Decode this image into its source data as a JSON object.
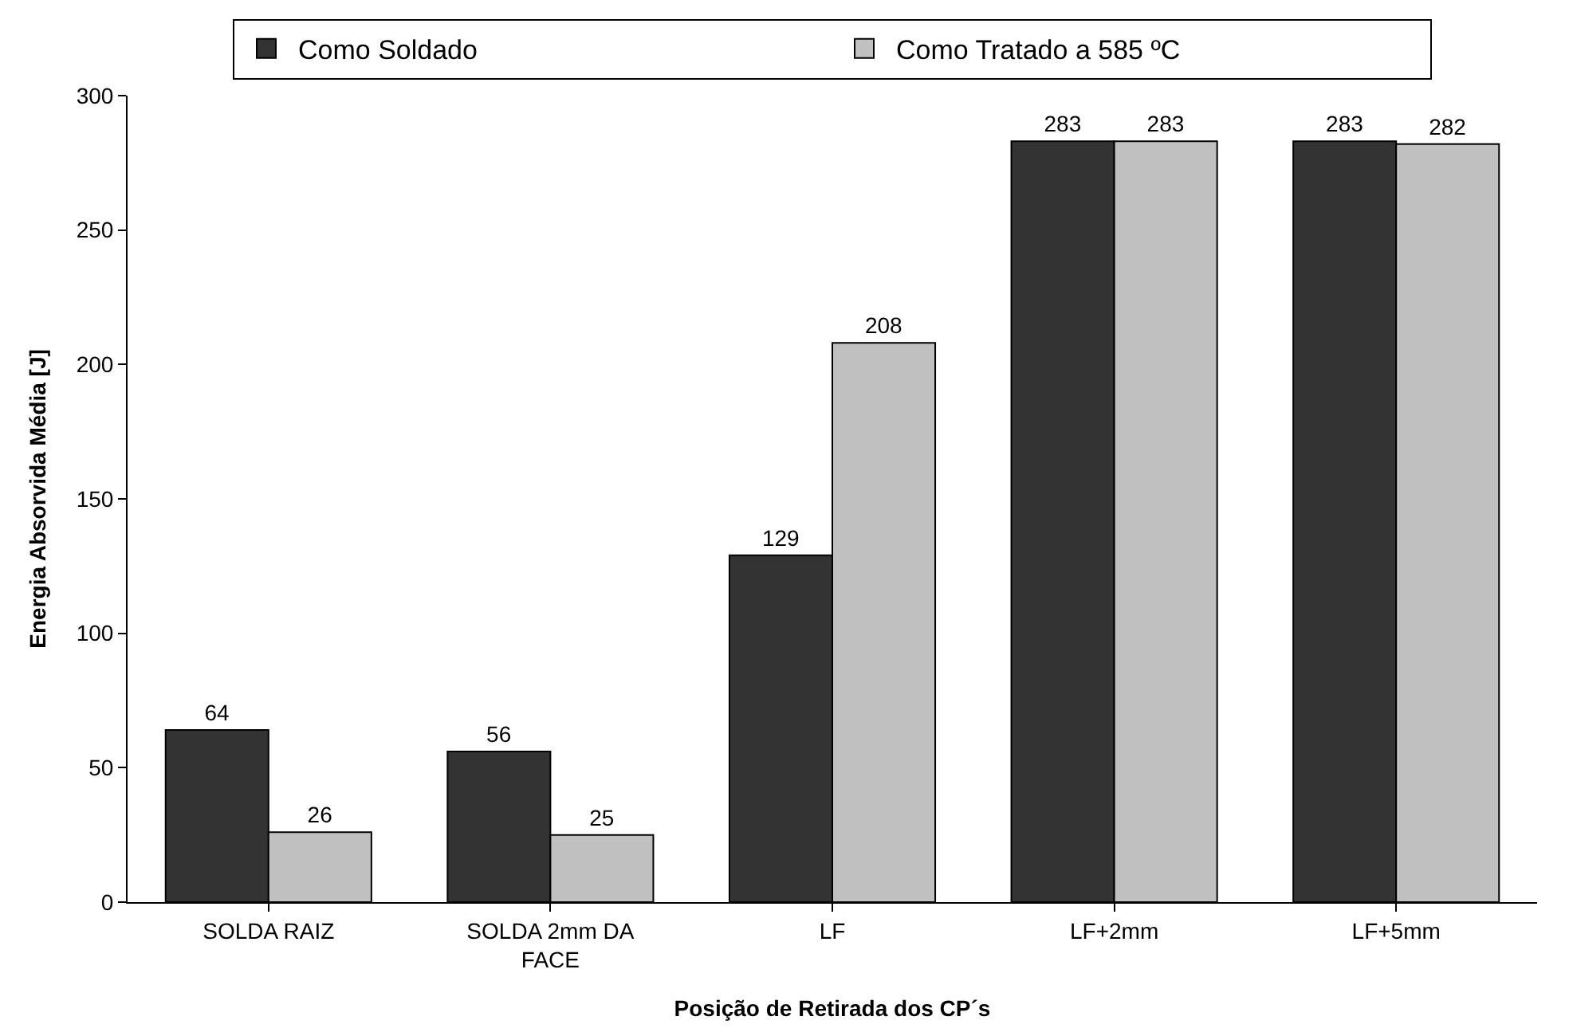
{
  "chart_data": {
    "type": "bar",
    "xlabel": "Posição de Retirada dos CP´s",
    "ylabel": "Energia Absorvida Média [J]",
    "categories": [
      "SOLDA RAIZ",
      "SOLDA 2mm DA FACE",
      "LF",
      "LF+2mm",
      "LF+5mm"
    ],
    "series": [
      {
        "name": "Como Soldado",
        "color": "#333333",
        "values": [
          64,
          56,
          129,
          283,
          283
        ]
      },
      {
        "name": "Como Tratado a 585 ºC",
        "color": "#c0c0c0",
        "values": [
          26,
          25,
          208,
          283,
          282
        ]
      }
    ],
    "ylim": [
      0,
      300
    ],
    "yticks": [
      0,
      50,
      100,
      150,
      200,
      250,
      300
    ],
    "data_labels": true,
    "legend": "top"
  }
}
